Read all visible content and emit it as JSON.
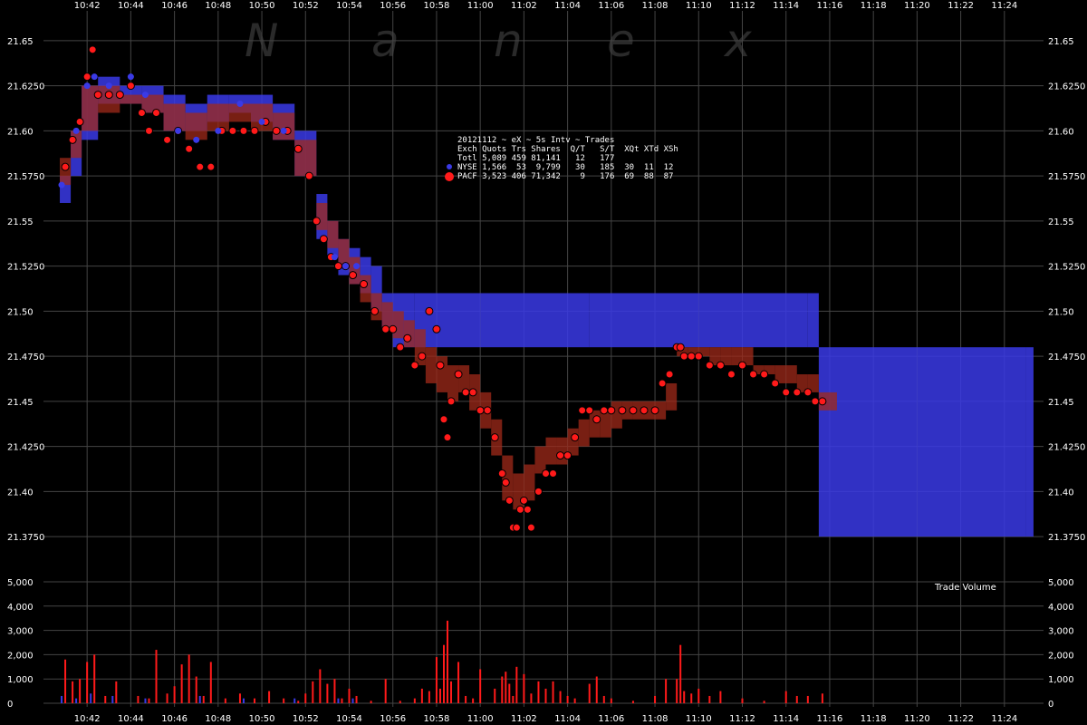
{
  "watermark": [
    "N",
    "a",
    "n",
    "e",
    "x"
  ],
  "colors": {
    "background": "#000000",
    "nyse": "#3a3ae6",
    "pacf": "#ff1a1a",
    "overlap": "#a03a8c",
    "pacf_dark": "#a02a1a",
    "grid": "#444444",
    "text": "#ffffff"
  },
  "stats_box": {
    "header": "20121112 ~ eX ~ 5s Intv ~ Trades",
    "columns": "Exch Quots Trs Shares  Q/T   S/T  XQt XTd XSh",
    "rows": [
      {
        "marker": "none",
        "text": "Totl 5,089 459 81,141   12   177"
      },
      {
        "marker": "nyse",
        "text": "NYSE 1,566  53  9,799   30   185  30  11  12"
      },
      {
        "marker": "pacf",
        "text": "PACF 3,523 406 71,342    9   176  69  88  87"
      }
    ]
  },
  "volume_label": "Trade Volume",
  "chart_data": [
    {
      "type": "line",
      "title": "",
      "x_tick_labels": [
        "10:42",
        "10:44",
        "10:46",
        "10:48",
        "10:50",
        "10:52",
        "10:54",
        "10:56",
        "10:58",
        "11:00",
        "11:02",
        "11:04",
        "11:06",
        "11:08",
        "11:10",
        "11:12",
        "11:14",
        "11:16",
        "11:18",
        "11:20",
        "11:22",
        "11:24"
      ],
      "xlim": [
        "10:40:30",
        "11:25:30"
      ],
      "y_tick_labels": [
        "21.65",
        "21.6250",
        "21.60",
        "21.5750",
        "21.55",
        "21.5250",
        "21.50",
        "21.4750",
        "21.45",
        "21.4250",
        "21.40",
        "21.3750"
      ],
      "ylim": [
        21.3625,
        21.6625
      ],
      "grid": true,
      "series": [
        {
          "name": "NYSE",
          "x": [
            "10:40:45",
            "10:41:15",
            "10:41:45",
            "10:42:30",
            "10:43:30",
            "10:44:30",
            "10:45:30",
            "10:46:30",
            "10:47:30",
            "10:48:30",
            "10:49:30",
            "10:50:30",
            "10:51:30",
            "10:52:30",
            "10:53:00",
            "10:53:30",
            "10:54:00",
            "10:54:30",
            "10:55:00",
            "10:55:30",
            "10:56:00",
            "10:57:00",
            "10:58:00",
            "11:00:00",
            "11:05:00",
            "11:10:00",
            "11:15:00",
            "11:15:30",
            "11:20:00",
            "11:25:00"
          ],
          "bid": [
            21.56,
            21.575,
            21.595,
            21.615,
            21.615,
            21.61,
            21.6,
            21.6,
            21.605,
            21.61,
            21.605,
            21.595,
            21.575,
            21.54,
            21.53,
            21.52,
            21.515,
            21.51,
            21.5,
            21.49,
            21.48,
            21.48,
            21.48,
            21.48,
            21.48,
            21.48,
            21.48,
            21.375,
            21.375,
            21.375
          ],
          "ask": [
            21.575,
            21.6,
            21.625,
            21.63,
            21.625,
            21.625,
            21.62,
            21.615,
            21.62,
            21.62,
            21.62,
            21.615,
            21.6,
            21.565,
            21.55,
            21.54,
            21.535,
            21.53,
            21.525,
            21.51,
            21.51,
            21.51,
            21.51,
            21.51,
            21.51,
            21.51,
            21.51,
            21.48,
            21.48,
            21.48
          ]
        },
        {
          "name": "PACF",
          "x": [
            "10:40:45",
            "10:41:15",
            "10:41:45",
            "10:42:30",
            "10:43:30",
            "10:44:30",
            "10:45:30",
            "10:46:30",
            "10:47:30",
            "10:48:30",
            "10:49:30",
            "10:50:30",
            "10:51:30",
            "10:52:30",
            "10:53:00",
            "10:53:30",
            "10:54:00",
            "10:54:30",
            "10:55:00",
            "10:55:30",
            "10:56:00",
            "10:56:30",
            "10:57:00",
            "10:57:30",
            "10:58:00",
            "10:58:30",
            "10:59:00",
            "10:59:30",
            "11:00:00",
            "11:00:30",
            "11:01:00",
            "11:01:30",
            "11:02:00",
            "11:02:30",
            "11:03:00",
            "11:03:30",
            "11:04:00",
            "11:04:30",
            "11:05:00",
            "11:05:30",
            "11:06:00",
            "11:06:30",
            "11:07:00",
            "11:07:30",
            "11:08:00",
            "11:08:30",
            "11:09:00",
            "11:09:30",
            "11:10:00",
            "11:10:30",
            "11:11:00",
            "11:11:30",
            "11:12:00",
            "11:12:30",
            "11:13:00",
            "11:13:30",
            "11:14:00",
            "11:14:30",
            "11:15:00",
            "11:15:30",
            "11:16:00"
          ],
          "bid": [
            21.57,
            21.585,
            21.6,
            21.61,
            21.615,
            21.61,
            21.6,
            21.595,
            21.6,
            21.605,
            21.6,
            21.595,
            21.575,
            21.545,
            21.535,
            21.525,
            21.515,
            21.505,
            21.495,
            21.49,
            21.485,
            21.48,
            21.47,
            21.46,
            21.455,
            21.45,
            21.455,
            21.445,
            21.435,
            21.42,
            21.395,
            21.39,
            21.395,
            21.41,
            21.415,
            21.415,
            21.42,
            21.425,
            21.43,
            21.43,
            21.435,
            21.44,
            21.44,
            21.44,
            21.44,
            21.445,
            21.475,
            21.475,
            21.475,
            21.47,
            21.47,
            21.47,
            21.47,
            21.465,
            21.465,
            21.46,
            21.46,
            21.455,
            21.455,
            21.445,
            21.445
          ],
          "ask": [
            21.585,
            21.6,
            21.625,
            21.625,
            21.62,
            21.62,
            21.615,
            21.61,
            21.615,
            21.615,
            21.615,
            21.61,
            21.595,
            21.56,
            21.55,
            21.54,
            21.53,
            21.52,
            21.51,
            21.505,
            21.5,
            21.495,
            21.49,
            21.48,
            21.475,
            21.47,
            21.47,
            21.465,
            21.455,
            21.44,
            21.42,
            21.41,
            21.415,
            21.425,
            21.43,
            21.43,
            21.435,
            21.44,
            21.445,
            21.445,
            21.45,
            21.45,
            21.45,
            21.45,
            21.45,
            21.46,
            21.48,
            21.48,
            21.48,
            21.48,
            21.48,
            21.48,
            21.48,
            21.47,
            21.47,
            21.47,
            21.47,
            21.465,
            21.465,
            21.455,
            21.455
          ]
        },
        {
          "name": "PACF trades",
          "x": [
            "10:41:00",
            "10:41:20",
            "10:41:40",
            "10:42:00",
            "10:42:15",
            "10:42:30",
            "10:43:00",
            "10:43:30",
            "10:44:00",
            "10:44:30",
            "10:44:50",
            "10:45:10",
            "10:45:40",
            "10:46:10",
            "10:46:40",
            "10:47:10",
            "10:47:40",
            "10:48:10",
            "10:48:40",
            "10:49:10",
            "10:49:40",
            "10:50:10",
            "10:50:40",
            "10:51:10",
            "10:51:40",
            "10:52:10",
            "10:52:30",
            "10:52:50",
            "10:53:10",
            "10:53:30",
            "10:53:50",
            "10:54:10",
            "10:54:40",
            "10:55:10",
            "10:55:40",
            "10:56:00",
            "10:56:20",
            "10:56:40",
            "10:57:00",
            "10:57:20",
            "10:57:40",
            "10:58:00",
            "10:58:10",
            "10:58:20",
            "10:58:30",
            "10:58:40",
            "10:59:00",
            "10:59:20",
            "10:59:40",
            "11:00:00",
            "11:00:20",
            "11:00:40",
            "11:01:00",
            "11:01:10",
            "11:01:20",
            "11:01:30",
            "11:01:40",
            "11:01:50",
            "11:02:00",
            "11:02:10",
            "11:02:20",
            "11:02:40",
            "11:03:00",
            "11:03:20",
            "11:03:40",
            "11:04:00",
            "11:04:20",
            "11:04:40",
            "11:05:00",
            "11:05:20",
            "11:05:40",
            "11:06:00",
            "11:06:30",
            "11:07:00",
            "11:07:30",
            "11:08:00",
            "11:08:20",
            "11:08:40",
            "11:09:00",
            "11:09:10",
            "11:09:20",
            "11:09:40",
            "11:10:00",
            "11:10:30",
            "11:11:00",
            "11:11:30",
            "11:12:00",
            "11:12:30",
            "11:13:00",
            "11:13:30",
            "11:14:00",
            "11:14:30",
            "11:15:00",
            "11:15:20",
            "11:15:40"
          ],
          "y": [
            21.58,
            21.595,
            21.605,
            21.63,
            21.645,
            21.62,
            21.62,
            21.62,
            21.625,
            21.61,
            21.6,
            21.61,
            21.595,
            21.6,
            21.59,
            21.58,
            21.58,
            21.6,
            21.6,
            21.6,
            21.6,
            21.605,
            21.6,
            21.6,
            21.59,
            21.575,
            21.55,
            21.54,
            21.53,
            21.525,
            21.525,
            21.52,
            21.515,
            21.5,
            21.49,
            21.49,
            21.48,
            21.485,
            21.47,
            21.475,
            21.5,
            21.49,
            21.47,
            21.44,
            21.43,
            21.45,
            21.465,
            21.455,
            21.455,
            21.445,
            21.445,
            21.43,
            21.41,
            21.405,
            21.395,
            21.38,
            21.38,
            21.39,
            21.395,
            21.39,
            21.38,
            21.4,
            21.41,
            21.41,
            21.42,
            21.42,
            21.43,
            21.445,
            21.445,
            21.44,
            21.445,
            21.445,
            21.445,
            21.445,
            21.445,
            21.445,
            21.46,
            21.465,
            21.48,
            21.48,
            21.475,
            21.475,
            21.475,
            21.47,
            21.47,
            21.465,
            21.47,
            21.465,
            21.465,
            21.46,
            21.455,
            21.455,
            21.455,
            21.45,
            21.45
          ]
        },
        {
          "name": "NYSE trades",
          "x": [
            "10:40:50",
            "10:41:30",
            "10:42:00",
            "10:42:20",
            "10:43:00",
            "10:44:00",
            "10:44:40",
            "10:46:10",
            "10:47:00",
            "10:48:00",
            "10:49:00",
            "10:50:00",
            "10:51:00",
            "10:53:20",
            "10:53:50",
            "10:54:20"
          ],
          "y": [
            21.57,
            21.6,
            21.625,
            21.63,
            21.625,
            21.63,
            21.62,
            21.6,
            21.595,
            21.6,
            21.615,
            21.605,
            21.6,
            21.53,
            21.525,
            21.525
          ]
        }
      ]
    },
    {
      "type": "bar",
      "title": "Trade Volume",
      "ylim": [
        0,
        5000
      ],
      "y_tick_labels": [
        "0",
        "1,000",
        "2,000",
        "3,000",
        "4,000",
        "5,000"
      ],
      "series": [
        {
          "name": "PACF",
          "x": [
            "10:41:00",
            "10:41:20",
            "10:41:40",
            "10:42:00",
            "10:42:20",
            "10:42:50",
            "10:43:20",
            "10:44:20",
            "10:44:50",
            "10:45:10",
            "10:45:40",
            "10:46:00",
            "10:46:20",
            "10:46:40",
            "10:47:00",
            "10:47:20",
            "10:47:40",
            "10:48:20",
            "10:49:00",
            "10:49:40",
            "10:50:20",
            "10:51:00",
            "10:51:40",
            "10:52:00",
            "10:52:20",
            "10:52:40",
            "10:53:00",
            "10:53:20",
            "10:53:40",
            "10:54:00",
            "10:54:20",
            "10:55:00",
            "10:55:40",
            "10:56:20",
            "10:57:00",
            "10:57:20",
            "10:57:40",
            "10:58:00",
            "10:58:10",
            "10:58:20",
            "10:58:30",
            "10:58:40",
            "10:59:00",
            "10:59:20",
            "10:59:40",
            "11:00:00",
            "11:00:40",
            "11:01:00",
            "11:01:10",
            "11:01:20",
            "11:01:30",
            "11:01:40",
            "11:02:00",
            "11:02:20",
            "11:02:40",
            "11:03:00",
            "11:03:20",
            "11:03:40",
            "11:04:00",
            "11:04:20",
            "11:05:00",
            "11:05:20",
            "11:05:40",
            "11:06:00",
            "11:07:00",
            "11:08:00",
            "11:08:30",
            "11:09:00",
            "11:09:10",
            "11:09:20",
            "11:09:40",
            "11:10:00",
            "11:10:30",
            "11:11:00",
            "11:12:00",
            "11:13:00",
            "11:14:00",
            "11:14:30",
            "11:15:00",
            "11:15:40"
          ],
          "values": [
            1800,
            900,
            1000,
            1700,
            2000,
            300,
            900,
            300,
            200,
            2200,
            400,
            700,
            1600,
            2000,
            1100,
            300,
            1700,
            200,
            400,
            200,
            500,
            200,
            100,
            400,
            900,
            1400,
            800,
            1000,
            200,
            600,
            300,
            100,
            1000,
            100,
            200,
            600,
            500,
            1900,
            600,
            2400,
            3400,
            900,
            1700,
            300,
            200,
            1400,
            600,
            1100,
            1300,
            800,
            300,
            1500,
            1200,
            400,
            900,
            600,
            900,
            500,
            300,
            200,
            800,
            1100,
            300,
            200,
            100,
            300,
            1000,
            1000,
            2400,
            500,
            400,
            600,
            300,
            500,
            200,
            100,
            500,
            300,
            300,
            400
          ]
        },
        {
          "name": "NYSE",
          "x": [
            "10:40:50",
            "10:41:30",
            "10:42:10",
            "10:43:10",
            "10:44:40",
            "10:47:10",
            "10:49:10",
            "10:51:30",
            "10:53:30",
            "10:54:10"
          ],
          "values": [
            300,
            200,
            400,
            300,
            200,
            300,
            200,
            200,
            200,
            200
          ]
        }
      ]
    }
  ]
}
